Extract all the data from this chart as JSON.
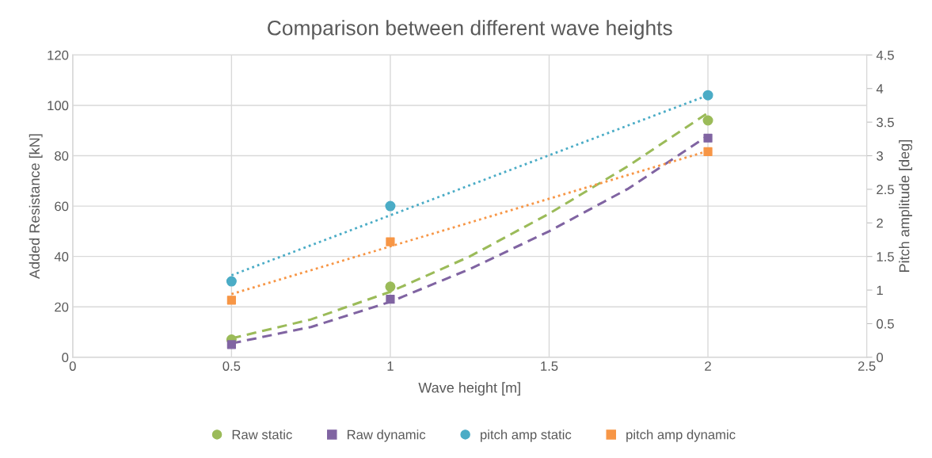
{
  "chart_data": {
    "type": "scatter",
    "title": "Comparison between different wave heights",
    "xlabel": "Wave height [m]",
    "ylabel": "Added Resistance [kN]",
    "y2label": "Pitch amplitude [deg]",
    "xlim": [
      0,
      2.5
    ],
    "xticks": [
      0,
      0.5,
      1,
      1.5,
      2,
      2.5
    ],
    "ylim": [
      0,
      120
    ],
    "yticks": [
      0,
      20,
      40,
      60,
      80,
      100,
      120
    ],
    "y2lim": [
      0,
      4.5
    ],
    "y2ticks": [
      0,
      0.5,
      1,
      1.5,
      2,
      2.5,
      3,
      3.5,
      4,
      4.5
    ],
    "grid": true,
    "legend": "bottom",
    "series": [
      {
        "type": "line",
        "color": "#9bbb59",
        "line_style": "dashed",
        "x": [
          0.5,
          0.75,
          1.0,
          1.25,
          1.5,
          1.75,
          2.0
        ],
        "values": [
          7.5,
          15,
          26,
          40,
          57,
          76,
          97
        ]
      },
      {
        "type": "line",
        "color": "#8064a2",
        "line_style": "dashed",
        "x": [
          0.5,
          0.75,
          1.0,
          1.25,
          1.5,
          1.75,
          2.0
        ],
        "values": [
          5.5,
          12,
          22,
          35,
          50,
          67,
          88
        ]
      },
      {
        "type": "line",
        "color": "#4bacc6",
        "line_style": "dotted",
        "axis": "y2",
        "x": [
          0.5,
          2.0
        ],
        "values": [
          1.22,
          3.9
        ]
      },
      {
        "type": "line",
        "color": "#f79646",
        "line_style": "dotted",
        "axis": "y2",
        "x": [
          0.5,
          2.0
        ],
        "values": [
          0.94,
          3.07
        ]
      },
      {
        "name": "Raw static",
        "color": "#9bbb59",
        "marker": "circle",
        "x": [
          0.5,
          1,
          2
        ],
        "values": [
          7,
          28,
          94
        ]
      },
      {
        "name": "Raw dynamic",
        "color": "#8064a2",
        "marker": "square",
        "x": [
          0.5,
          1,
          2
        ],
        "values": [
          5,
          23,
          87
        ]
      },
      {
        "name": "pitch amp static",
        "color": "#4bacc6",
        "marker": "circle",
        "axis": "y2",
        "x": [
          0.5,
          1,
          2
        ],
        "values": [
          1.13,
          2.25,
          3.9
        ]
      },
      {
        "name": "pitch amp dynamic",
        "color": "#f79646",
        "marker": "square",
        "axis": "y2",
        "x": [
          0.5,
          1,
          2
        ],
        "values": [
          0.85,
          1.72,
          3.06
        ]
      }
    ]
  }
}
